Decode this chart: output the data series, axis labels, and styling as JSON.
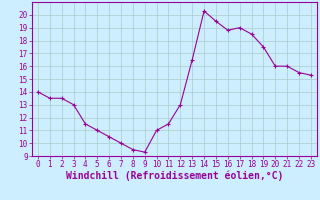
{
  "x": [
    0,
    1,
    2,
    3,
    4,
    5,
    6,
    7,
    8,
    9,
    10,
    11,
    12,
    13,
    14,
    15,
    16,
    17,
    18,
    19,
    20,
    21,
    22,
    23
  ],
  "y": [
    14.0,
    13.5,
    13.5,
    13.0,
    11.5,
    11.0,
    10.5,
    10.0,
    9.5,
    9.3,
    11.0,
    11.5,
    13.0,
    16.5,
    20.3,
    19.5,
    18.8,
    19.0,
    18.5,
    17.5,
    16.0,
    16.0,
    15.5,
    15.3
  ],
  "line_color": "#990099",
  "marker": "+",
  "marker_size": 3,
  "bg_color": "#cceeff",
  "grid_color": "#aacccc",
  "xlabel": "Windchill (Refroidissement éolien,°C)",
  "xlabel_color": "#990099",
  "ylim": [
    9,
    21
  ],
  "xlim": [
    -0.5,
    23.5
  ],
  "yticks": [
    9,
    10,
    11,
    12,
    13,
    14,
    15,
    16,
    17,
    18,
    19,
    20
  ],
  "xticks": [
    0,
    1,
    2,
    3,
    4,
    5,
    6,
    7,
    8,
    9,
    10,
    11,
    12,
    13,
    14,
    15,
    16,
    17,
    18,
    19,
    20,
    21,
    22,
    23
  ],
  "tick_label_size": 5.5,
  "xlabel_fontsize": 7,
  "tick_color": "#990099",
  "spine_color": "#990099",
  "linewidth": 0.8,
  "markeredgewidth": 0.8
}
